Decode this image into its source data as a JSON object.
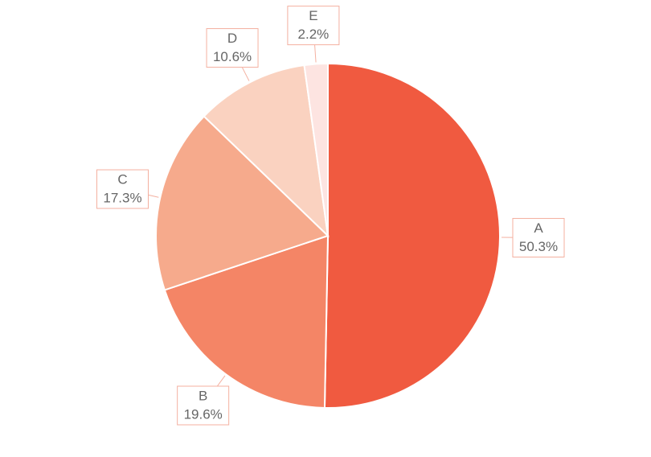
{
  "chart_data": {
    "type": "pie",
    "categories": [
      "A",
      "B",
      "C",
      "D",
      "E"
    ],
    "values": [
      50.3,
      19.6,
      17.3,
      10.6,
      2.2
    ],
    "value_labels": [
      "50.3%",
      "19.6%",
      "17.3%",
      "10.6%",
      "2.2%"
    ],
    "colors": [
      "#f05a40",
      "#f48566",
      "#f6aa8c",
      "#fad2c0",
      "#fde4e1"
    ]
  }
}
